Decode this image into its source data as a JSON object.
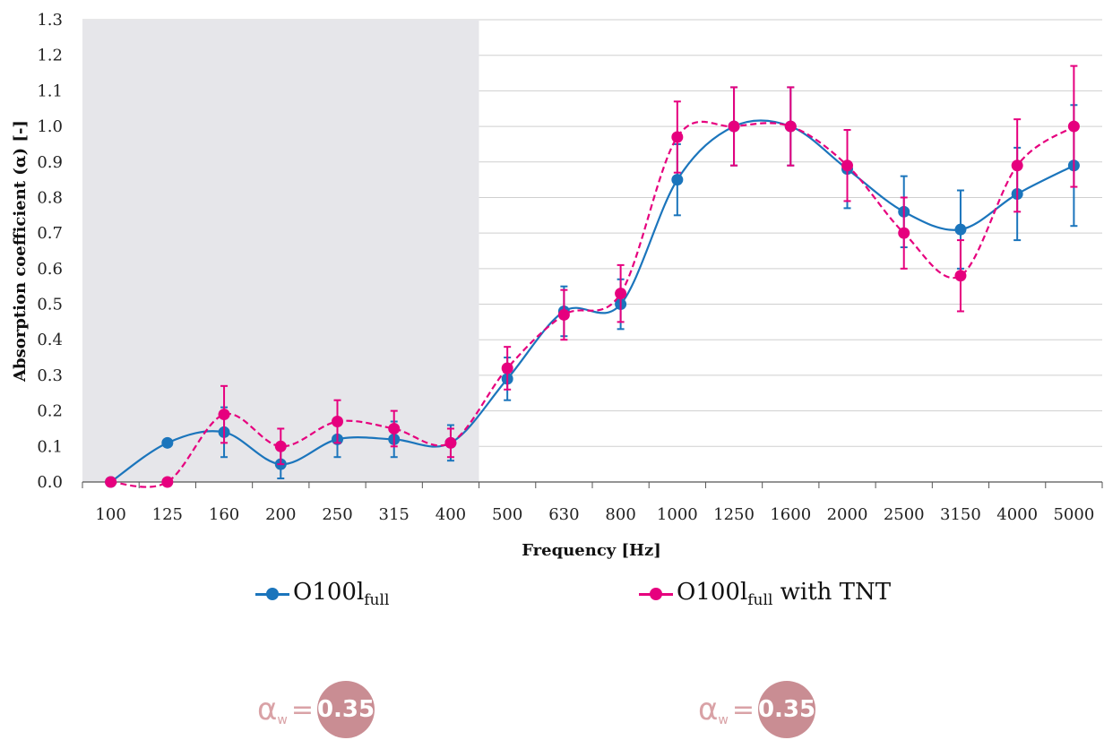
{
  "chart_data": {
    "type": "line",
    "title": "",
    "xlabel": "Frequency [Hz]",
    "ylabel": "Absorption coefficient (α)  [-]",
    "ylim": [
      0,
      1.3
    ],
    "yticks": [
      "0.0",
      "0.1",
      "0.2",
      "0.3",
      "0.4",
      "0.5",
      "0.6",
      "0.7",
      "0.8",
      "0.9",
      "1.0",
      "1.1",
      "1.2",
      "1.3"
    ],
    "categories": [
      "100",
      "125",
      "160",
      "200",
      "250",
      "315",
      "400",
      "500",
      "630",
      "800",
      "1000",
      "1250",
      "1600",
      "2000",
      "2500",
      "3150",
      "4000",
      "5000"
    ],
    "grid": true,
    "shaded_region": {
      "from": "100",
      "to": "400",
      "color": "#e6e6ea"
    },
    "series": [
      {
        "name": "O100l",
        "name_sub": "full",
        "color": "#1b75bc",
        "dash": false,
        "values": [
          0.0,
          0.11,
          0.14,
          0.05,
          0.12,
          0.12,
          0.11,
          0.29,
          0.48,
          0.5,
          0.85,
          1.0,
          1.0,
          0.88,
          0.76,
          0.71,
          0.81,
          0.89
        ],
        "err": [
          null,
          null,
          0.07,
          0.04,
          0.05,
          0.05,
          0.05,
          0.06,
          0.07,
          0.07,
          0.1,
          0.11,
          0.11,
          0.11,
          0.1,
          0.11,
          0.13,
          0.17
        ]
      },
      {
        "name": "O100l",
        "name_sub": "full",
        "name_suffix": "with TNT",
        "color": "#e6007e",
        "dash": true,
        "values": [
          0.0,
          0.0,
          0.19,
          0.1,
          0.17,
          0.15,
          0.11,
          0.32,
          0.47,
          0.53,
          0.97,
          1.0,
          1.0,
          0.89,
          0.7,
          0.58,
          0.89,
          1.0
        ],
        "err": [
          null,
          null,
          0.08,
          0.05,
          0.06,
          0.05,
          0.04,
          0.06,
          0.07,
          0.08,
          0.1,
          0.11,
          0.11,
          0.1,
          0.1,
          0.1,
          0.13,
          0.17
        ]
      }
    ]
  },
  "rating": [
    {
      "symbol": "α",
      "sub": "w",
      "eq": "=",
      "value": "0.35"
    },
    {
      "symbol": "α",
      "sub": "w",
      "eq": "=",
      "value": "0.35"
    }
  ]
}
